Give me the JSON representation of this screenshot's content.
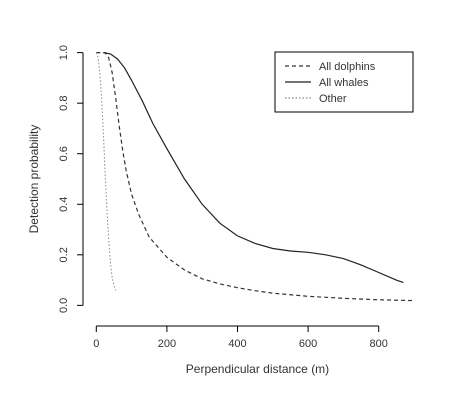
{
  "chart_data": {
    "type": "line",
    "title": "",
    "xlabel": "Perpendicular distance (m)",
    "ylabel": "Detection probability",
    "xlim": [
      -15,
      900
    ],
    "ylim": [
      -0.05,
      1.05
    ],
    "xticks": [
      0,
      200,
      400,
      600,
      800
    ],
    "yticks": [
      0.0,
      0.2,
      0.4,
      0.6,
      0.8,
      1.0
    ],
    "xtick_labels": [
      "0",
      "200",
      "400",
      "600",
      "800"
    ],
    "ytick_labels": [
      "0.0",
      "0.2",
      "0.4",
      "0.6",
      "0.8",
      "1.0"
    ],
    "legend_position": "top-right",
    "grid": false,
    "series": [
      {
        "name": "All dolphins",
        "style": "dashed",
        "color": "#333333",
        "x": [
          0,
          15,
          25,
          35,
          45,
          55,
          65,
          75,
          85,
          100,
          120,
          150,
          200,
          250,
          300,
          350,
          400,
          450,
          500,
          600,
          700,
          800,
          900
        ],
        "y": [
          1.0,
          1.0,
          1.0,
          0.98,
          0.92,
          0.82,
          0.71,
          0.61,
          0.53,
          0.44,
          0.36,
          0.27,
          0.19,
          0.14,
          0.105,
          0.085,
          0.07,
          0.058,
          0.048,
          0.036,
          0.028,
          0.022,
          0.019
        ]
      },
      {
        "name": "All whales",
        "style": "solid",
        "color": "#222222",
        "x": [
          20,
          40,
          60,
          80,
          100,
          130,
          160,
          200,
          250,
          300,
          350,
          400,
          450,
          500,
          550,
          600,
          650,
          700,
          750,
          800,
          850,
          870
        ],
        "y": [
          1.0,
          0.995,
          0.975,
          0.94,
          0.89,
          0.81,
          0.72,
          0.62,
          0.5,
          0.4,
          0.325,
          0.275,
          0.245,
          0.225,
          0.215,
          0.21,
          0.2,
          0.185,
          0.16,
          0.13,
          0.1,
          0.09
        ]
      },
      {
        "name": "Other",
        "style": "dotted",
        "color": "#888888",
        "x": [
          0,
          5,
          10,
          15,
          20,
          25,
          30,
          35,
          40,
          45,
          50,
          55
        ],
        "y": [
          1.0,
          0.98,
          0.92,
          0.82,
          0.68,
          0.52,
          0.38,
          0.26,
          0.17,
          0.11,
          0.08,
          0.06
        ]
      }
    ]
  }
}
